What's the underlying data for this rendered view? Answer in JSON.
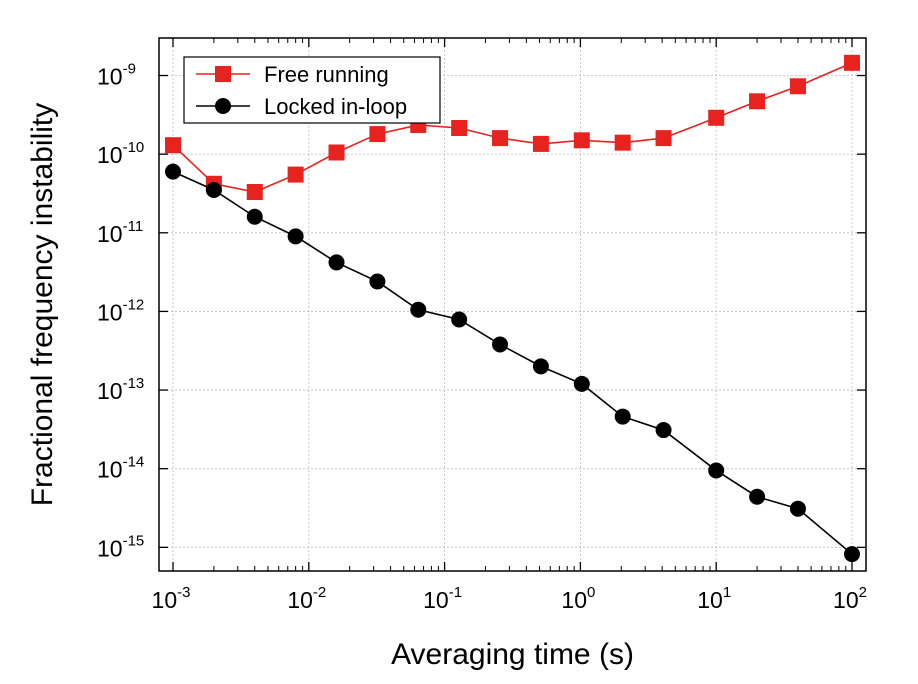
{
  "chart_data": {
    "type": "line",
    "xscale": "log",
    "yscale": "log",
    "xlabel": "Averaging time (s)",
    "ylabel": "Fractional frequency instability",
    "xlim": [
      0.001,
      100
    ],
    "ylim": [
      5e-16,
      3e-09
    ],
    "grid": true,
    "legend_position": "top-left",
    "x_ticks": [
      {
        "base": "10",
        "exp": "-3",
        "value": 0.001
      },
      {
        "base": "10",
        "exp": "-2",
        "value": 0.01
      },
      {
        "base": "10",
        "exp": "-1",
        "value": 0.1
      },
      {
        "base": "10",
        "exp": "0",
        "value": 1
      },
      {
        "base": "10",
        "exp": "1",
        "value": 10
      },
      {
        "base": "10",
        "exp": "2",
        "value": 100
      }
    ],
    "y_ticks": [
      {
        "base": "10",
        "exp": "-15",
        "value": 1e-15
      },
      {
        "base": "10",
        "exp": "-14",
        "value": 1e-14
      },
      {
        "base": "10",
        "exp": "-13",
        "value": 1e-13
      },
      {
        "base": "10",
        "exp": "-12",
        "value": 1e-12
      },
      {
        "base": "10",
        "exp": "-11",
        "value": 1e-11
      },
      {
        "base": "10",
        "exp": "-10",
        "value": 1e-10
      },
      {
        "base": "10",
        "exp": "-9",
        "value": 1e-09
      }
    ],
    "series": [
      {
        "name": "Free running",
        "color": "#e8221e",
        "marker": "square",
        "x": [
          0.001,
          0.002,
          0.004,
          0.008,
          0.016,
          0.032,
          0.064,
          0.128,
          0.256,
          0.512,
          1.024,
          2.048,
          4.096,
          10,
          20,
          40,
          100
        ],
        "y": [
          1.3e-10,
          4.2e-11,
          3.3e-11,
          5.5e-11,
          1.05e-10,
          1.8e-10,
          2.35e-10,
          2.15e-10,
          1.6e-10,
          1.35e-10,
          1.5e-10,
          1.4e-10,
          1.6e-10,
          2.9e-10,
          4.7e-10,
          7.3e-10,
          1.45e-09
        ]
      },
      {
        "name": "Locked in-loop",
        "color": "#000000",
        "marker": "circle",
        "x": [
          0.001,
          0.002,
          0.004,
          0.008,
          0.016,
          0.032,
          0.064,
          0.128,
          0.256,
          0.512,
          1.024,
          2.048,
          4.096,
          10,
          20,
          40,
          100
        ],
        "y": [
          6e-11,
          3.5e-11,
          1.6e-11,
          9e-12,
          4.2e-12,
          2.4e-12,
          1.05e-12,
          7.9e-13,
          3.8e-13,
          2e-13,
          1.2e-13,
          4.6e-14,
          3.1e-14,
          9.5e-15,
          4.4e-15,
          3.1e-15,
          8.2e-16
        ]
      }
    ]
  }
}
